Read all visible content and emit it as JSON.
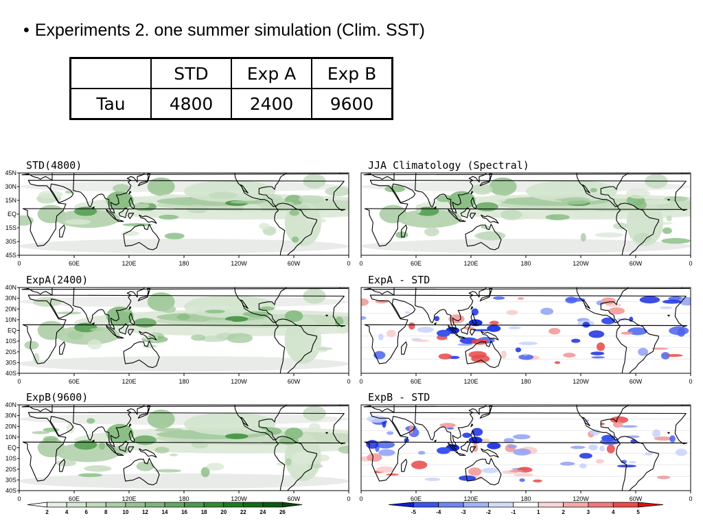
{
  "heading": {
    "bullet": "•",
    "text": "Experiments 2. one summer simulation (Clim. SST)"
  },
  "table": {
    "header": [
      "",
      "STD",
      "Exp A",
      "Exp B"
    ],
    "row": [
      "Tau",
      "4800",
      "2400",
      "9600"
    ]
  },
  "panels": [
    {
      "title": "STD(4800)",
      "kind": "clim",
      "ylabels": [
        "45N",
        "30N",
        "15N",
        "EQ",
        "15S",
        "30S",
        "45S"
      ]
    },
    {
      "title": "JJA Climatology (Spectral)",
      "kind": "clim",
      "ylabels": []
    },
    {
      "title": "ExpA(2400)",
      "kind": "clim",
      "ylabels": [
        "40N",
        "30N",
        "20N",
        "10N",
        "EQ",
        "10S",
        "20S",
        "30S",
        "40S"
      ]
    },
    {
      "title": "ExpA - STD",
      "kind": "diff",
      "ylabels": []
    },
    {
      "title": "ExpB(9600)",
      "kind": "clim",
      "ylabels": [
        "40N",
        "30N",
        "20N",
        "10N",
        "EQ",
        "10S",
        "20S",
        "30S",
        "40S"
      ]
    },
    {
      "title": "ExpB - STD",
      "kind": "diff",
      "ylabels": []
    }
  ],
  "xlabels": [
    "0",
    "60E",
    "120E",
    "180",
    "120W",
    "60W",
    "0"
  ],
  "colorbar_green": {
    "labels": [
      "2",
      "4",
      "6",
      "8",
      "10",
      "12",
      "14",
      "16",
      "18",
      "20",
      "22",
      "24",
      "26"
    ],
    "colors": [
      "#ffffff",
      "#e8f0e6",
      "#d6e6d2",
      "#c2dbbb",
      "#acceaa",
      "#95c393",
      "#7db67b",
      "#64a863",
      "#4e9a4c",
      "#348a34",
      "#1f7a22",
      "#126b15",
      "#0a5a0d",
      "#064a09"
    ]
  },
  "colorbar_diff": {
    "labels": [
      "-5",
      "-4",
      "-3",
      "-2",
      "-1",
      "1",
      "2",
      "3",
      "4",
      "5"
    ],
    "colors": [
      "#0a1fd8",
      "#3b55ee",
      "#6f86f2",
      "#a4b3f6",
      "#d4dcfa",
      "#ffffff",
      "#fad6d6",
      "#f6a9a9",
      "#f27a7a",
      "#ee4b4b",
      "#e01010"
    ]
  },
  "colors": {
    "land_outline": "#000000",
    "green": "#1f7a22",
    "blue": "#1a2fe0",
    "red": "#e03030"
  }
}
